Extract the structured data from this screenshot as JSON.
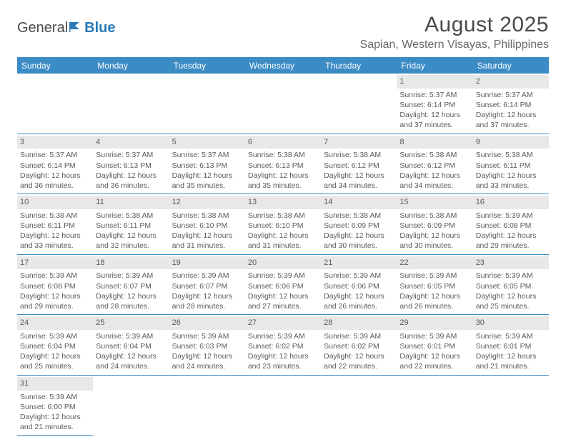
{
  "logo": {
    "text1": "General",
    "text2": "Blue"
  },
  "title": "August 2025",
  "location": "Sapian, Western Visayas, Philippines",
  "colors": {
    "header_bg": "#3b8bc5",
    "header_text": "#ffffff",
    "daynum_bg": "#e8e8e8",
    "border": "#3b8bc5",
    "text": "#5a5a5a",
    "logo_gray": "#4a4a4a",
    "logo_blue": "#2a7ab9"
  },
  "day_headers": [
    "Sunday",
    "Monday",
    "Tuesday",
    "Wednesday",
    "Thursday",
    "Friday",
    "Saturday"
  ],
  "weeks": [
    [
      null,
      null,
      null,
      null,
      null,
      {
        "n": "1",
        "sr": "5:37 AM",
        "ss": "6:14 PM",
        "dl1": "12 hours",
        "dl2": "and 37 minutes."
      },
      {
        "n": "2",
        "sr": "5:37 AM",
        "ss": "6:14 PM",
        "dl1": "12 hours",
        "dl2": "and 37 minutes."
      }
    ],
    [
      {
        "n": "3",
        "sr": "5:37 AM",
        "ss": "6:14 PM",
        "dl1": "12 hours",
        "dl2": "and 36 minutes."
      },
      {
        "n": "4",
        "sr": "5:37 AM",
        "ss": "6:13 PM",
        "dl1": "12 hours",
        "dl2": "and 36 minutes."
      },
      {
        "n": "5",
        "sr": "5:37 AM",
        "ss": "6:13 PM",
        "dl1": "12 hours",
        "dl2": "and 35 minutes."
      },
      {
        "n": "6",
        "sr": "5:38 AM",
        "ss": "6:13 PM",
        "dl1": "12 hours",
        "dl2": "and 35 minutes."
      },
      {
        "n": "7",
        "sr": "5:38 AM",
        "ss": "6:12 PM",
        "dl1": "12 hours",
        "dl2": "and 34 minutes."
      },
      {
        "n": "8",
        "sr": "5:38 AM",
        "ss": "6:12 PM",
        "dl1": "12 hours",
        "dl2": "and 34 minutes."
      },
      {
        "n": "9",
        "sr": "5:38 AM",
        "ss": "6:11 PM",
        "dl1": "12 hours",
        "dl2": "and 33 minutes."
      }
    ],
    [
      {
        "n": "10",
        "sr": "5:38 AM",
        "ss": "6:11 PM",
        "dl1": "12 hours",
        "dl2": "and 33 minutes."
      },
      {
        "n": "11",
        "sr": "5:38 AM",
        "ss": "6:11 PM",
        "dl1": "12 hours",
        "dl2": "and 32 minutes."
      },
      {
        "n": "12",
        "sr": "5:38 AM",
        "ss": "6:10 PM",
        "dl1": "12 hours",
        "dl2": "and 31 minutes."
      },
      {
        "n": "13",
        "sr": "5:38 AM",
        "ss": "6:10 PM",
        "dl1": "12 hours",
        "dl2": "and 31 minutes."
      },
      {
        "n": "14",
        "sr": "5:38 AM",
        "ss": "6:09 PM",
        "dl1": "12 hours",
        "dl2": "and 30 minutes."
      },
      {
        "n": "15",
        "sr": "5:38 AM",
        "ss": "6:09 PM",
        "dl1": "12 hours",
        "dl2": "and 30 minutes."
      },
      {
        "n": "16",
        "sr": "5:39 AM",
        "ss": "6:08 PM",
        "dl1": "12 hours",
        "dl2": "and 29 minutes."
      }
    ],
    [
      {
        "n": "17",
        "sr": "5:39 AM",
        "ss": "6:08 PM",
        "dl1": "12 hours",
        "dl2": "and 29 minutes."
      },
      {
        "n": "18",
        "sr": "5:39 AM",
        "ss": "6:07 PM",
        "dl1": "12 hours",
        "dl2": "and 28 minutes."
      },
      {
        "n": "19",
        "sr": "5:39 AM",
        "ss": "6:07 PM",
        "dl1": "12 hours",
        "dl2": "and 28 minutes."
      },
      {
        "n": "20",
        "sr": "5:39 AM",
        "ss": "6:06 PM",
        "dl1": "12 hours",
        "dl2": "and 27 minutes."
      },
      {
        "n": "21",
        "sr": "5:39 AM",
        "ss": "6:06 PM",
        "dl1": "12 hours",
        "dl2": "and 26 minutes."
      },
      {
        "n": "22",
        "sr": "5:39 AM",
        "ss": "6:05 PM",
        "dl1": "12 hours",
        "dl2": "and 26 minutes."
      },
      {
        "n": "23",
        "sr": "5:39 AM",
        "ss": "6:05 PM",
        "dl1": "12 hours",
        "dl2": "and 25 minutes."
      }
    ],
    [
      {
        "n": "24",
        "sr": "5:39 AM",
        "ss": "6:04 PM",
        "dl1": "12 hours",
        "dl2": "and 25 minutes."
      },
      {
        "n": "25",
        "sr": "5:39 AM",
        "ss": "6:04 PM",
        "dl1": "12 hours",
        "dl2": "and 24 minutes."
      },
      {
        "n": "26",
        "sr": "5:39 AM",
        "ss": "6:03 PM",
        "dl1": "12 hours",
        "dl2": "and 24 minutes."
      },
      {
        "n": "27",
        "sr": "5:39 AM",
        "ss": "6:02 PM",
        "dl1": "12 hours",
        "dl2": "and 23 minutes."
      },
      {
        "n": "28",
        "sr": "5:39 AM",
        "ss": "6:02 PM",
        "dl1": "12 hours",
        "dl2": "and 22 minutes."
      },
      {
        "n": "29",
        "sr": "5:39 AM",
        "ss": "6:01 PM",
        "dl1": "12 hours",
        "dl2": "and 22 minutes."
      },
      {
        "n": "30",
        "sr": "5:39 AM",
        "ss": "6:01 PM",
        "dl1": "12 hours",
        "dl2": "and 21 minutes."
      }
    ],
    [
      {
        "n": "31",
        "sr": "5:39 AM",
        "ss": "6:00 PM",
        "dl1": "12 hours",
        "dl2": "and 21 minutes."
      },
      null,
      null,
      null,
      null,
      null,
      null
    ]
  ],
  "labels": {
    "sunrise": "Sunrise:",
    "sunset": "Sunset:",
    "daylight": "Daylight:"
  }
}
